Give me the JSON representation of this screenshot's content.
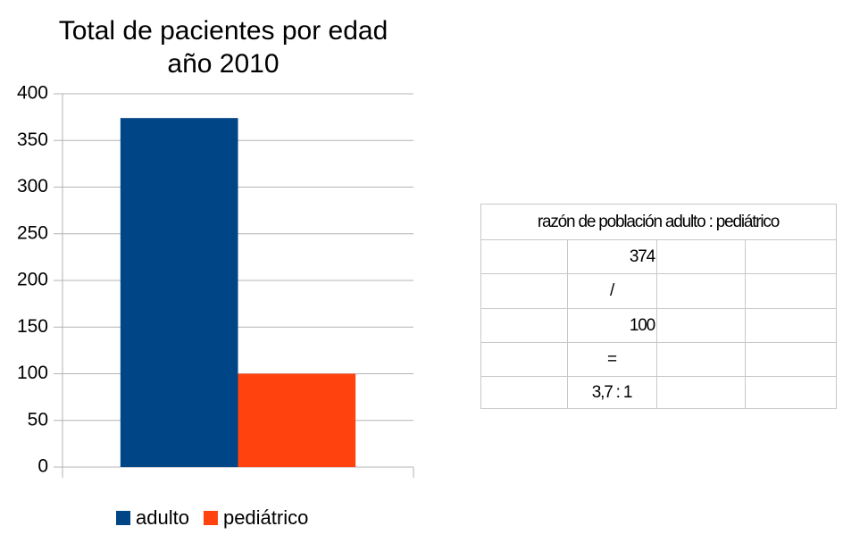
{
  "chart_data": {
    "type": "bar",
    "title": [
      "Total de pacientes por edad",
      "año 2010"
    ],
    "categories": [
      null
    ],
    "series": [
      {
        "name": "adulto",
        "color": "#004586",
        "values": [
          374
        ]
      },
      {
        "name": "pediátrico",
        "color": "#ff420e",
        "values": [
          100
        ]
      }
    ],
    "ylim": [
      0,
      400
    ],
    "yticks": [
      0,
      50,
      100,
      150,
      200,
      250,
      300,
      350,
      400
    ],
    "grid": true,
    "legend": "bottom"
  },
  "table": {
    "header": "razón de población adulto : pediátrico",
    "rows": [
      "374",
      "/",
      "100",
      "=",
      "3,7 : 1"
    ]
  }
}
